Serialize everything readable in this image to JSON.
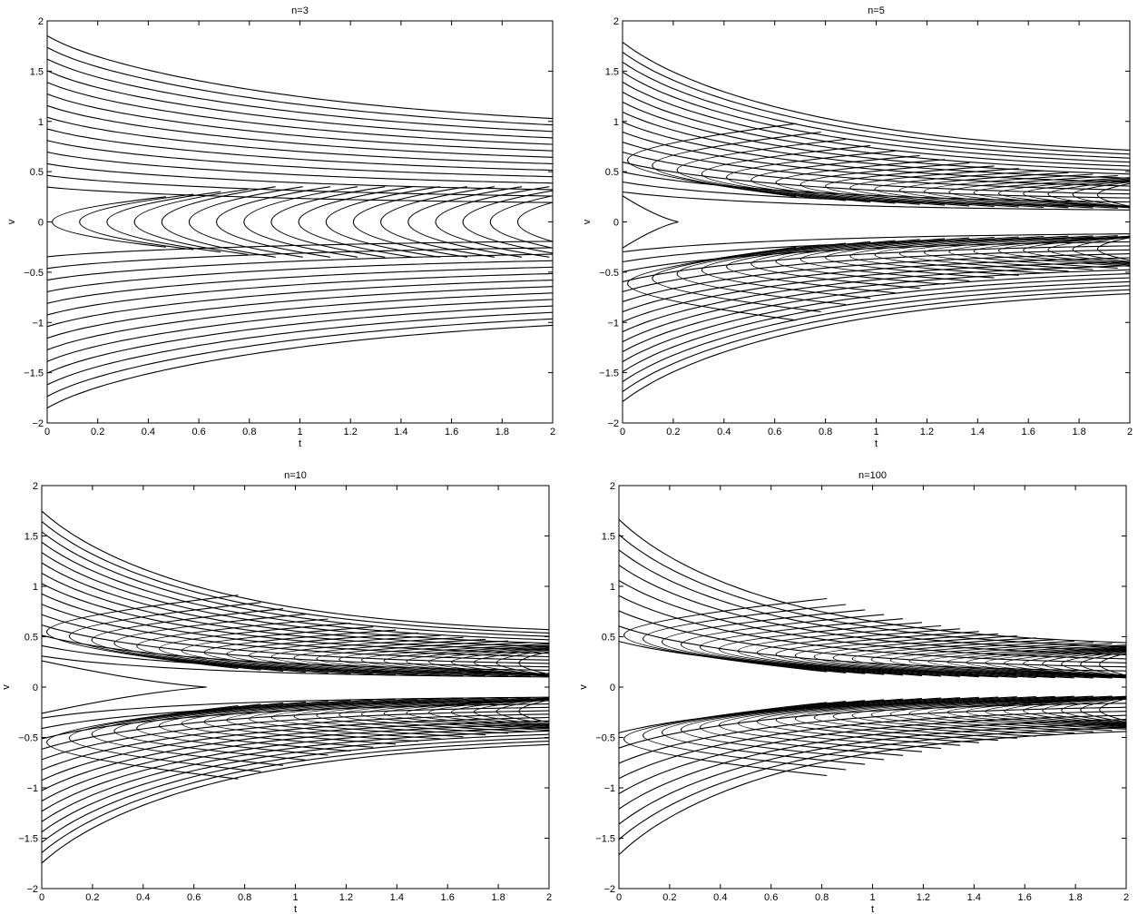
{
  "chart_data": [
    {
      "type": "contour",
      "title": "n=3",
      "xlabel": "t",
      "ylabel": "v",
      "xlim": [
        0,
        2
      ],
      "ylim": [
        -2,
        2
      ],
      "xticks": [
        "0",
        "0.2",
        "0.4",
        "0.6",
        "0.8",
        "1",
        "1.2",
        "1.4",
        "1.6",
        "1.8",
        "2"
      ],
      "yticks": [
        "2",
        "1.5",
        "1",
        "0.5",
        "0",
        "−0.5",
        "−1",
        "−1.5",
        "−2"
      ],
      "contour_params": {
        "n": 3,
        "outer_levels": 14,
        "inner_lobes": 18,
        "concentration": 0.0,
        "outer_start": 1.78,
        "outer_end": 0.88
      }
    },
    {
      "type": "contour",
      "title": "n=5",
      "xlabel": "t",
      "ylabel": "v",
      "xlim": [
        0,
        2
      ],
      "ylim": [
        -2,
        2
      ],
      "xticks": [
        "0",
        "0.2",
        "0.4",
        "0.6",
        "0.8",
        "1",
        "1.2",
        "1.4",
        "1.6",
        "1.8",
        "2"
      ],
      "yticks": [
        "2",
        "1.5",
        "1",
        "0.5",
        "0",
        "−0.5",
        "−1",
        "−1.5",
        "−2"
      ],
      "contour_params": {
        "n": 5,
        "outer_levels": 16,
        "inner_lobes": 20,
        "concentration": 0.55,
        "outer_start": 1.72,
        "outer_end": 0.62
      }
    },
    {
      "type": "contour",
      "title": "n=10",
      "xlabel": "t",
      "ylabel": "v",
      "xlim": [
        0,
        2
      ],
      "ylim": [
        -2,
        2
      ],
      "xticks": [
        "0",
        "0.2",
        "0.4",
        "0.6",
        "0.8",
        "1",
        "1.2",
        "1.4",
        "1.6",
        "1.8",
        "2"
      ],
      "yticks": [
        "2",
        "1.5",
        "1",
        "0.5",
        "0",
        "−0.5",
        "−1",
        "−1.5",
        "−2"
      ],
      "contour_params": {
        "n": 10,
        "outer_levels": 15,
        "inner_lobes": 22,
        "concentration": 0.85,
        "outer_start": 1.68,
        "outer_end": 0.5
      }
    },
    {
      "type": "contour",
      "title": "n=100",
      "xlabel": "t",
      "ylabel": "v",
      "xlim": [
        0,
        2
      ],
      "ylim": [
        -2,
        2
      ],
      "xticks": [
        "0",
        "0.2",
        "0.4",
        "0.6",
        "0.8",
        "1",
        "1.2",
        "1.4",
        "1.6",
        "1.8",
        "2"
      ],
      "yticks": [
        "2",
        "1.5",
        "1",
        "0.5",
        "0",
        "−0.5",
        "−1",
        "−1.5",
        "−2"
      ],
      "contour_params": {
        "n": 100,
        "outer_levels": 9,
        "inner_lobes": 26,
        "concentration": 1.0,
        "outer_start": 1.6,
        "outer_end": 0.38
      }
    }
  ]
}
